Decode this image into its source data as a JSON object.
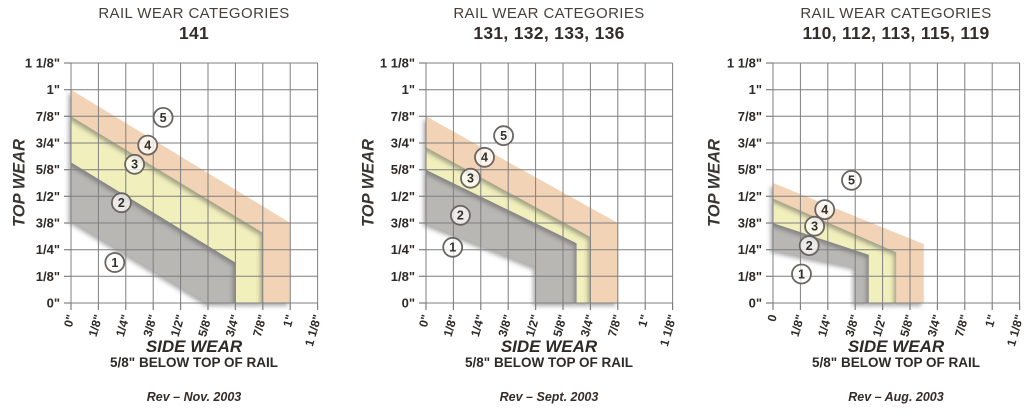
{
  "colors": {
    "band_gray": "#b9b7b4",
    "band_yellow": "#f1efbb",
    "band_orange": "#f3d3b5",
    "grid": "#7f7f7f",
    "tick_text": "#2d2a27",
    "title": "#46403d",
    "subtitle": "#322d2a",
    "marker_stroke": "#6a6561",
    "marker_fill": "#ffffff",
    "marker_text": "#332f2b",
    "shadow": "#474747"
  },
  "chart_data": [
    {
      "type": "area",
      "title": "RAIL WEAR CATEGORIES",
      "subtitle": "141",
      "rev": "Rev – Nov. 2003",
      "x_axis": {
        "label": "SIDE WEAR",
        "sublabel": "5/8\" BELOW TOP OF RAIL",
        "range_inches": [
          0,
          1.125
        ],
        "ticks": [
          "0\"",
          "1/8\"",
          "1/4\"",
          "3/8\"",
          "1/2\"",
          "5/8\"",
          "3/4\"",
          "7/8\"",
          "1\"",
          "1 1/8\""
        ]
      },
      "y_axis": {
        "label": "TOP WEAR",
        "range_inches": [
          0,
          1.125
        ],
        "ticks": [
          "1 1/8\"",
          "1\"",
          "7/8\"",
          "3/4\"",
          "5/8\"",
          "1/2\"",
          "3/8\"",
          "1/4\"",
          "1/8\"",
          "0\""
        ]
      },
      "grid": "on",
      "bands": [
        {
          "name": "category-2-limit-band",
          "color_key": "band_gray",
          "points_in": [
            [
              0,
              0.39
            ],
            [
              0,
              0.66
            ],
            [
              0.75,
              0.19
            ],
            [
              0.75,
              0
            ],
            [
              0.625,
              0
            ]
          ]
        },
        {
          "name": "category-3-limit-band",
          "color_key": "band_yellow",
          "points_in": [
            [
              0,
              0.66
            ],
            [
              0,
              0.875
            ],
            [
              0.875,
              0.33
            ],
            [
              0.875,
              0
            ],
            [
              0.75,
              0
            ],
            [
              0.75,
              0.19
            ]
          ]
        },
        {
          "name": "category-4-limit-band",
          "color_key": "band_orange",
          "points_in": [
            [
              0,
              0.875
            ],
            [
              0,
              1.0
            ],
            [
              1.0,
              0.375
            ],
            [
              1.0,
              0
            ],
            [
              0.875,
              0
            ],
            [
              0.875,
              0.33
            ]
          ]
        }
      ],
      "markers": [
        {
          "label": "1",
          "x_in": 0.2,
          "y_in": 0.19
        },
        {
          "label": "2",
          "x_in": 0.23,
          "y_in": 0.47
        },
        {
          "label": "3",
          "x_in": 0.29,
          "y_in": 0.65
        },
        {
          "label": "4",
          "x_in": 0.35,
          "y_in": 0.74
        },
        {
          "label": "5",
          "x_in": 0.42,
          "y_in": 0.87
        }
      ]
    },
    {
      "type": "area",
      "title": "RAIL WEAR CATEGORIES",
      "subtitle": "131, 132, 133, 136",
      "rev": "Rev – Sept. 2003",
      "x_axis": {
        "label": "SIDE WEAR",
        "sublabel": "5/8\" BELOW TOP OF RAIL",
        "range_inches": [
          0,
          1.125
        ],
        "ticks": [
          "0\"",
          "1/8\"",
          "1/4\"",
          "3/8\"",
          "1/2\"",
          "5/8\"",
          "3/4\"",
          "7/8\"",
          "1\"",
          "1 1/8\""
        ]
      },
      "y_axis": {
        "label": "TOP WEAR",
        "range_inches": [
          0,
          1.125
        ],
        "ticks": [
          "1 1/8\"",
          "1\"",
          "7/8\"",
          "3/4\"",
          "5/8\"",
          "1/2\"",
          "3/8\"",
          "1/4\"",
          "1/8\"",
          "0\""
        ]
      },
      "grid": "on",
      "bands": [
        {
          "name": "category-2-limit-band",
          "color_key": "band_gray",
          "points_in": [
            [
              0,
              0.375
            ],
            [
              0,
              0.625
            ],
            [
              0.6875,
              0.28
            ],
            [
              0.6875,
              0
            ],
            [
              0.5,
              0
            ],
            [
              0.5,
              0.17
            ]
          ]
        },
        {
          "name": "category-3-limit-band",
          "color_key": "band_yellow",
          "points_in": [
            [
              0,
              0.625
            ],
            [
              0,
              0.73
            ],
            [
              0.75,
              0.31
            ],
            [
              0.75,
              0
            ],
            [
              0.6875,
              0
            ],
            [
              0.6875,
              0.28
            ]
          ]
        },
        {
          "name": "category-4-limit-band",
          "color_key": "band_orange",
          "points_in": [
            [
              0,
              0.73
            ],
            [
              0,
              0.875
            ],
            [
              0.875,
              0.375
            ],
            [
              0.875,
              0
            ],
            [
              0.75,
              0
            ],
            [
              0.75,
              0.31
            ]
          ]
        }
      ],
      "markers": [
        {
          "label": "1",
          "x_in": 0.122,
          "y_in": 0.261
        },
        {
          "label": "2",
          "x_in": 0.157,
          "y_in": 0.411
        },
        {
          "label": "3",
          "x_in": 0.203,
          "y_in": 0.585
        },
        {
          "label": "4",
          "x_in": 0.267,
          "y_in": 0.683
        },
        {
          "label": "5",
          "x_in": 0.354,
          "y_in": 0.784
        }
      ]
    },
    {
      "type": "area",
      "title": "RAIL WEAR CATEGORIES",
      "subtitle": "110, 112, 113, 115, 119",
      "rev": "Rev – Aug. 2003",
      "x_axis": {
        "label": "SIDE WEAR",
        "sublabel": "5/8\" BELOW TOP OF RAIL",
        "range_inches": [
          0,
          1.125
        ],
        "ticks": [
          "0",
          "1/8\"",
          "1/4\"",
          "3/8\"",
          "1/2\"",
          "5/8\"",
          "3/4\"",
          "7/8\"",
          "1\"",
          "1 1/8\""
        ]
      },
      "y_axis": {
        "label": "TOP WEAR",
        "range_inches": [
          0,
          1.125
        ],
        "ticks": [
          "1 1/8\"",
          "1\"",
          "7/8\"",
          "3/4\"",
          "5/8\"",
          "1/2\"",
          "3/8\"",
          "1/4\"",
          "1/8\"",
          "0\""
        ]
      },
      "grid": "on",
      "bands": [
        {
          "name": "category-2-limit-band",
          "color_key": "band_gray",
          "points_in": [
            [
              0,
              0.25
            ],
            [
              0,
              0.375
            ],
            [
              0.4375,
              0.226
            ],
            [
              0.4375,
              0
            ],
            [
              0.375,
              0
            ],
            [
              0.375,
              0.169
            ]
          ]
        },
        {
          "name": "category-3-limit-band",
          "color_key": "band_yellow",
          "points_in": [
            [
              0,
              0.375
            ],
            [
              0,
              0.49
            ],
            [
              0.5625,
              0.238
            ],
            [
              0.5625,
              0
            ],
            [
              0.4375,
              0
            ],
            [
              0.4375,
              0.226
            ]
          ]
        },
        {
          "name": "category-4-limit-band",
          "color_key": "band_orange",
          "points_in": [
            [
              0,
              0.49
            ],
            [
              0,
              0.5625
            ],
            [
              0.6875,
              0.276
            ],
            [
              0.6875,
              0
            ],
            [
              0.5625,
              0
            ],
            [
              0.5625,
              0.238
            ]
          ]
        }
      ],
      "markers": [
        {
          "label": "1",
          "x_in": 0.13,
          "y_in": 0.136
        },
        {
          "label": "2",
          "x_in": 0.165,
          "y_in": 0.269
        },
        {
          "label": "3",
          "x_in": 0.19,
          "y_in": 0.36
        },
        {
          "label": "4",
          "x_in": 0.236,
          "y_in": 0.438
        },
        {
          "label": "5",
          "x_in": 0.358,
          "y_in": 0.575
        }
      ]
    }
  ]
}
